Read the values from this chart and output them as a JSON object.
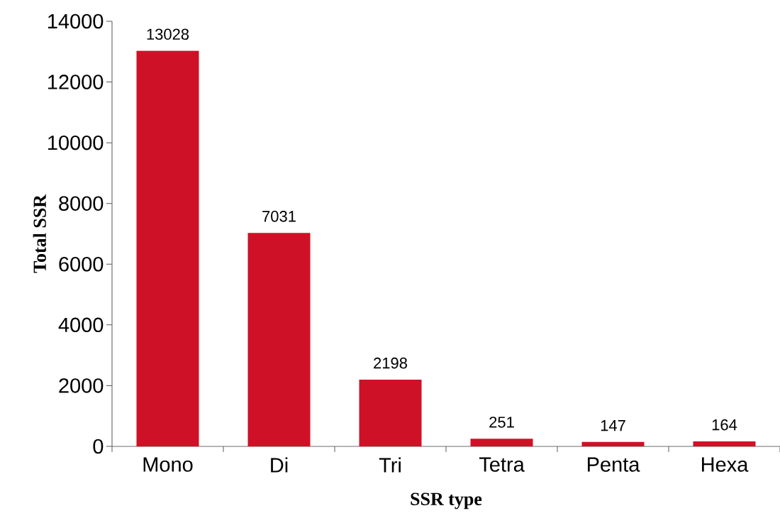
{
  "chart_data": {
    "type": "bar",
    "xlabel": "SSR type",
    "ylabel": "Total SSR",
    "categories": [
      "Mono",
      "Di",
      "Tri",
      "Tetra",
      "Penta",
      "Hexa"
    ],
    "values": [
      13028,
      7031,
      2198,
      251,
      147,
      164
    ],
    "color": "#ce1126",
    "ylim": [
      0,
      14000
    ],
    "yticks": [
      0,
      2000,
      4000,
      6000,
      8000,
      10000,
      12000,
      14000
    ],
    "data_labels": true,
    "grid": false
  }
}
